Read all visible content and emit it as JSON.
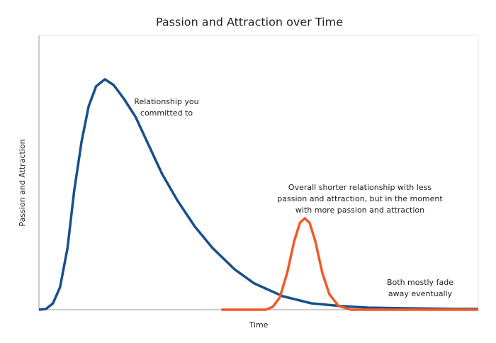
{
  "chart_data": {
    "type": "line",
    "title": "Passion and Attraction over Time",
    "x_label": "Time",
    "y_label": "Passion and Attraction",
    "xlim": [
      0,
      100
    ],
    "ylim": [
      0,
      120
    ],
    "series": [
      {
        "color": "#1a4f8a",
        "x": [
          0,
          1.6,
          3.2,
          4.8,
          6.5,
          8,
          9.7,
          11.3,
          13,
          15,
          17,
          19.4,
          22,
          25,
          28,
          31.5,
          35.5,
          39.5,
          44.5,
          49,
          55.5,
          62,
          68.5,
          75,
          85,
          94.5,
          100
        ],
        "values": [
          0,
          0.3,
          2.8,
          9.9,
          27,
          51.8,
          73.5,
          89,
          97.7,
          100.8,
          98.3,
          92.1,
          84.3,
          71.9,
          59.5,
          47.8,
          36.3,
          27,
          17.7,
          11.5,
          5.9,
          2.8,
          1.6,
          0.9,
          0.6,
          0.3,
          0.3
        ]
      },
      {
        "color": "#f05a28",
        "x": [
          41.5,
          51.6,
          53.2,
          54.8,
          56.5,
          58.1,
          59.4,
          60.5,
          61.6,
          62.9,
          64.5,
          66.1,
          68.2,
          71,
          100
        ],
        "values": [
          0,
          0,
          1.2,
          5.3,
          16.1,
          30,
          38,
          40,
          38,
          30,
          16.1,
          6.8,
          1.6,
          0,
          0
        ]
      }
    ],
    "annotations": [
      [
        "Relationship you",
        "committed to"
      ],
      [
        "Overall shorter relationship with less",
        "passion and attraction, but in the moment",
        "with more passion and attraction"
      ],
      [
        "Both mostly fade",
        "away eventually"
      ]
    ]
  }
}
